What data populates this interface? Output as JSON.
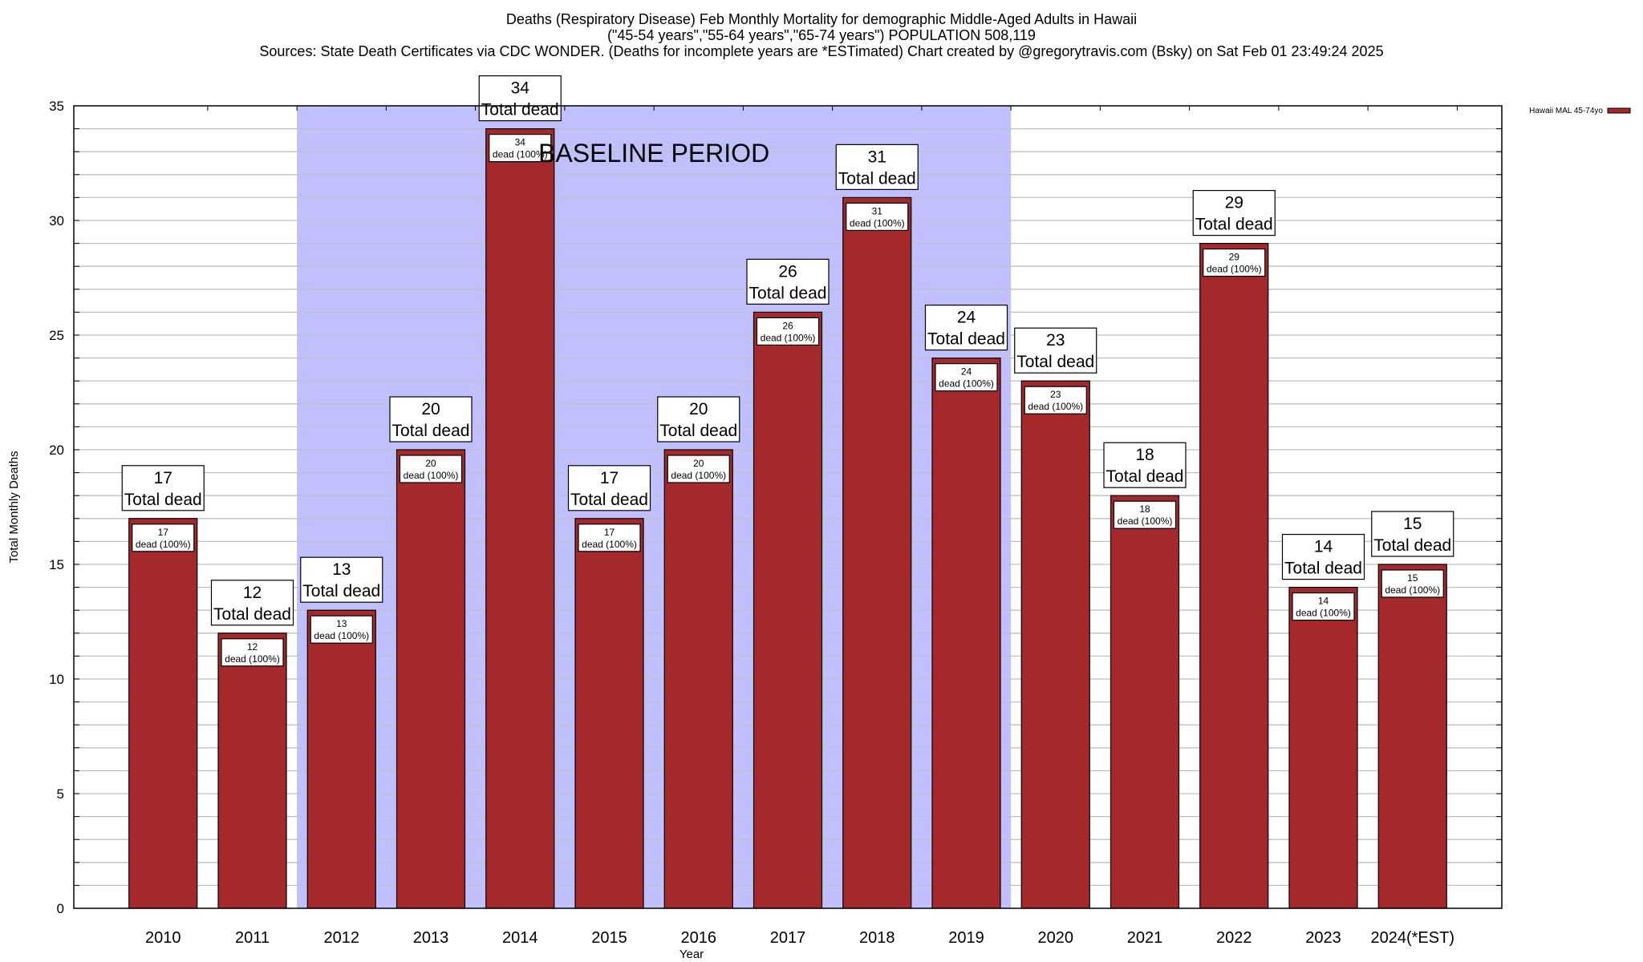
{
  "chart_data": {
    "type": "bar",
    "title_lines": [
      "Deaths (Respiratory Disease) Feb Monthly Mortality for demographic Middle-Aged Adults in Hawaii",
      "(\"45-54 years\",\"55-64 years\",\"65-74 years\") POPULATION 508,119",
      "Sources: State Death Certificates via CDC WONDER. (Deaths for incomplete years are *ESTimated)                Chart created by @gregorytravis.com (Bsky) on Sat Feb 01 23:49:24 2025"
    ],
    "xlabel": "Year",
    "ylabel": "Total Monthly Deaths",
    "ylim": [
      0,
      35
    ],
    "yticks": [
      0,
      5,
      10,
      15,
      20,
      25,
      30,
      35
    ],
    "grid": true,
    "categories": [
      "2010",
      "2011",
      "2012",
      "2013",
      "2014",
      "2015",
      "2016",
      "2017",
      "2018",
      "2019",
      "2020",
      "2021",
      "2022",
      "2023",
      "2024(*EST)"
    ],
    "series": [
      {
        "name": "Hawaii MAL 45-74yo",
        "color": "#a5292a",
        "values": [
          17,
          12,
          13,
          20,
          34,
          17,
          20,
          26,
          31,
          24,
          23,
          18,
          29,
          14,
          15
        ]
      }
    ],
    "total_label": "Total dead",
    "inner_label": "dead (100%)",
    "baseline": {
      "label": "BASELINE PERIOD",
      "from": "2012",
      "to": "2019",
      "color": "#c0c0ff"
    },
    "legend_position": "top-right"
  }
}
